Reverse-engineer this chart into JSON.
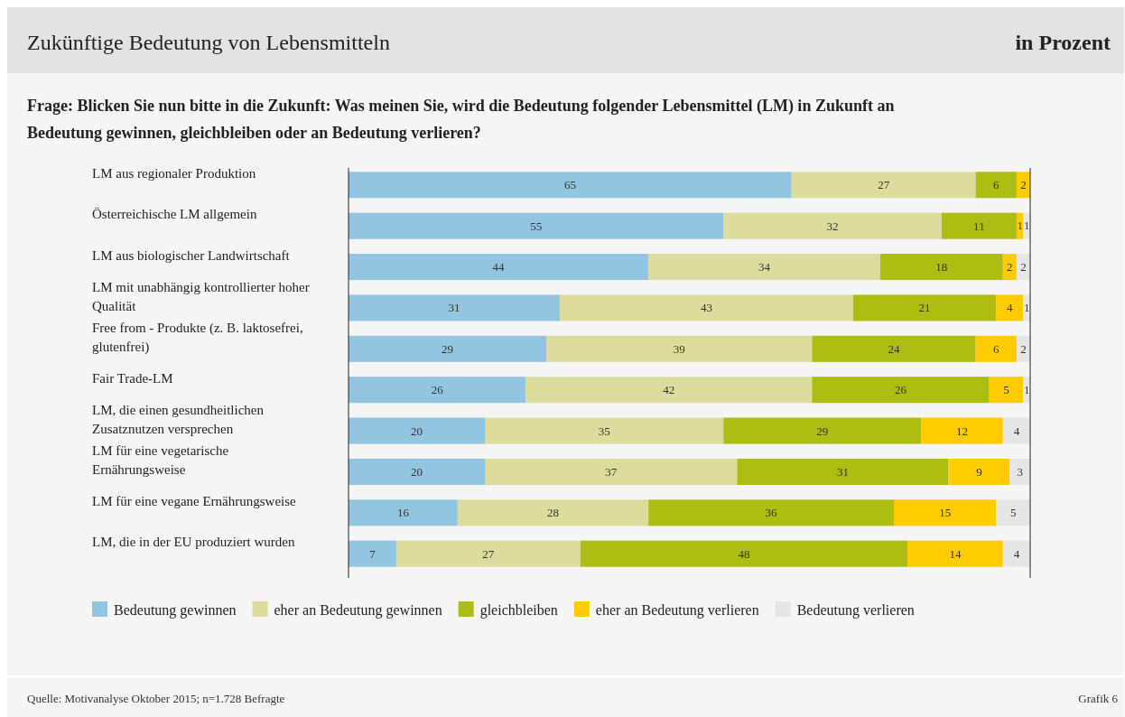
{
  "chart_data": {
    "type": "bar",
    "orientation": "horizontal",
    "stacked": true,
    "title": "Zukünftige Bedeutung von Lebensmitteln",
    "subtitle": "in Prozent",
    "annotations": [
      "Frage: Blicken Sie nun bitte in die Zukunft: Was meinen Sie, wird die Bedeutung folgender Lebensmittel (LM) in Zukunft an Bedeutung gewinnen, gleichbleiben oder an Bedeutung verlieren?",
      "Quelle: Motivanalyse Oktober 2015; n=1.728 Befragte",
      "Grafik 6"
    ],
    "categories": [
      "LM aus regionaler Produktion",
      "Österreichische LM allgemein",
      "LM aus biologischer Landwirtschaft",
      "LM mit unabhängig kontrollierter hoher Qualität",
      "Free from - Produkte (z. B. laktosefrei, glutenfrei)",
      "Fair Trade-LM",
      "LM, die einen gesundheitlichen Zusatznutzen versprechen",
      "LM für eine vegetarische Ernährungsweise",
      "LM für eine vegane Ernährungsweise",
      "LM, die in der EU produziert wurden"
    ],
    "series": [
      {
        "name": "Bedeutung gewinnen",
        "color": "#92c5e0",
        "values": [
          65,
          55,
          44,
          31,
          29,
          26,
          20,
          20,
          16,
          7
        ]
      },
      {
        "name": "eher an Bedeutung gewinnen",
        "color": "#dcdd9d",
        "values": [
          27,
          32,
          34,
          43,
          39,
          42,
          35,
          37,
          28,
          27
        ]
      },
      {
        "name": "gleichbleiben",
        "color": "#adbd12",
        "values": [
          6,
          11,
          18,
          21,
          24,
          26,
          29,
          31,
          36,
          48
        ]
      },
      {
        "name": "eher an Bedeutung verlieren",
        "color": "#ffcc00",
        "values": [
          2,
          1,
          2,
          4,
          6,
          5,
          12,
          9,
          15,
          14
        ]
      },
      {
        "name": "Bedeutung verlieren",
        "color": "#e6e6e6",
        "values": [
          null,
          1,
          2,
          1,
          2,
          1,
          4,
          3,
          5,
          4
        ]
      }
    ],
    "xlim": [
      0,
      100
    ],
    "tick_labels": "y",
    "data_labels": true,
    "legend": "bottom"
  }
}
